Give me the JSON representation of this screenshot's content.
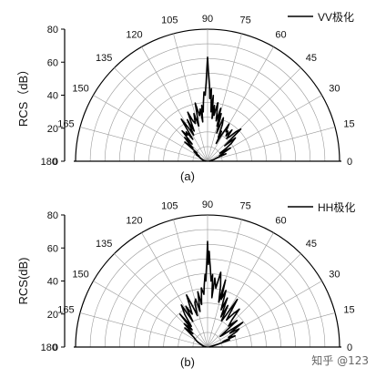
{
  "chart_data": [
    {
      "type": "polar-line",
      "panel_label": "(a)",
      "ylabel": "RCS（dB）",
      "r_range": [
        0,
        80
      ],
      "r_ticks": [
        0,
        20,
        40,
        60,
        80
      ],
      "angle_range": [
        0,
        180
      ],
      "angle_ticks": [
        0,
        15,
        30,
        45,
        60,
        75,
        90,
        105,
        120,
        135,
        150,
        165,
        180
      ],
      "legend": {
        "label": "VV极化",
        "placement": "top-right"
      },
      "grid": true,
      "series": [
        {
          "name": "VV极化",
          "angles": [
            0,
            10,
            15,
            20,
            22,
            25,
            27,
            30,
            33,
            35,
            37,
            40,
            42,
            44,
            46,
            48,
            50,
            52,
            54,
            56,
            58,
            60,
            62,
            64,
            65,
            66,
            68,
            70,
            72,
            74,
            75,
            76,
            78,
            80,
            82,
            83,
            84,
            85,
            86,
            87,
            88,
            88.5,
            89,
            89.5,
            90,
            90.5,
            91,
            91.5,
            92,
            93,
            94,
            95,
            96,
            97,
            98,
            100,
            102,
            104,
            106,
            108,
            110,
            112,
            114,
            116,
            118,
            120,
            122,
            124,
            126,
            128,
            130,
            132,
            134,
            136,
            138,
            140,
            142,
            145,
            148,
            150,
            155,
            160,
            165,
            170,
            175,
            180
          ],
          "values": [
            1,
            2,
            4,
            6,
            12,
            8,
            10,
            16,
            9,
            14,
            18,
            22,
            14,
            28,
            25,
            20,
            18,
            24,
            19,
            22,
            21,
            26,
            18,
            12,
            20,
            16,
            24,
            28,
            18,
            30,
            22,
            33,
            25,
            36,
            28,
            34,
            26,
            40,
            30,
            44,
            38,
            46,
            50,
            55,
            63,
            55,
            48,
            44,
            40,
            42,
            36,
            30,
            34,
            24,
            32,
            28,
            36,
            22,
            30,
            24,
            26,
            32,
            20,
            28,
            18,
            24,
            30,
            16,
            22,
            20,
            24,
            14,
            20,
            16,
            12,
            18,
            8,
            10,
            6,
            8,
            5,
            4,
            3,
            2,
            1,
            1
          ]
        }
      ]
    },
    {
      "type": "polar-line",
      "panel_label": "(b)",
      "ylabel": "RCS(dB)",
      "r_range": [
        0,
        80
      ],
      "r_ticks": [
        0,
        20,
        40,
        60,
        80
      ],
      "angle_range": [
        0,
        180
      ],
      "angle_ticks": [
        0,
        15,
        30,
        45,
        60,
        75,
        90,
        105,
        120,
        135,
        150,
        165,
        180
      ],
      "legend": {
        "label": "HH极化",
        "placement": "top-right"
      },
      "grid": true,
      "series": [
        {
          "name": "HH极化",
          "angles": [
            0,
            10,
            15,
            18,
            20,
            22,
            25,
            28,
            30,
            32,
            35,
            38,
            40,
            42,
            45,
            48,
            50,
            52,
            55,
            58,
            60,
            62,
            64,
            66,
            68,
            70,
            72,
            74,
            75,
            76,
            78,
            80,
            82,
            84,
            85,
            86,
            87,
            88,
            88.5,
            89,
            89.5,
            90,
            90.5,
            91,
            91.5,
            92,
            93,
            94,
            96,
            98,
            100,
            102,
            104,
            106,
            108,
            110,
            112,
            115,
            118,
            120,
            122,
            125,
            128,
            130,
            132,
            135,
            138,
            140,
            145,
            150,
            155,
            160,
            165,
            170,
            175,
            180
          ],
          "values": [
            1,
            2,
            6,
            14,
            10,
            18,
            14,
            20,
            22,
            16,
            26,
            12,
            10,
            24,
            18,
            22,
            30,
            26,
            20,
            34,
            22,
            18,
            28,
            20,
            32,
            24,
            36,
            30,
            42,
            28,
            38,
            46,
            36,
            42,
            30,
            44,
            40,
            48,
            52,
            58,
            50,
            64,
            52,
            46,
            40,
            44,
            38,
            32,
            36,
            26,
            34,
            22,
            30,
            28,
            20,
            26,
            34,
            22,
            28,
            18,
            30,
            24,
            16,
            26,
            14,
            20,
            12,
            18,
            10,
            8,
            6,
            4,
            3,
            2,
            1,
            1
          ]
        }
      ]
    }
  ],
  "watermark": "知乎 @123"
}
